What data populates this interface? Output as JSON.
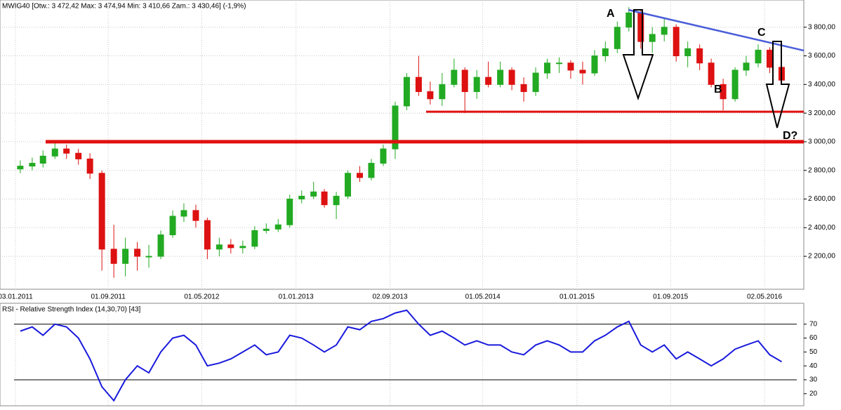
{
  "chart_data": [
    {
      "type": "candlestick",
      "title": "MWIG40 [Otw.: 3 472,42  Max: 3 474,94  Min: 3 410,66  Zam.: 3 430,46] (-1,9%)",
      "x": [
        "01.01.2011",
        "01.02.2011",
        "01.03.2011",
        "01.04.2011",
        "01.05.2011",
        "01.06.2011",
        "01.07.2011",
        "01.08.2011",
        "01.09.2011",
        "01.10.2011",
        "01.11.2011",
        "01.12.2011",
        "01.01.2012",
        "01.02.2012",
        "01.03.2012",
        "01.04.2012",
        "01.05.2012",
        "01.06.2012",
        "01.07.2012",
        "01.08.2012",
        "01.09.2012",
        "01.10.2012",
        "01.11.2012",
        "01.12.2012",
        "01.01.2013",
        "01.02.2013",
        "01.03.2013",
        "01.04.2013",
        "01.05.2013",
        "01.06.2013",
        "01.07.2013",
        "01.08.2013",
        "01.09.2013",
        "01.10.2013",
        "01.11.2013",
        "01.12.2013",
        "01.01.2014",
        "01.02.2014",
        "01.03.2014",
        "01.04.2014",
        "01.05.2014",
        "01.06.2014",
        "01.07.2014",
        "01.08.2014",
        "01.09.2014",
        "01.10.2014",
        "01.11.2014",
        "01.12.2014",
        "01.01.2015",
        "01.02.2015",
        "01.03.2015",
        "01.04.2015",
        "01.05.2015",
        "01.06.2015",
        "01.07.2015",
        "01.08.2015",
        "01.09.2015",
        "01.10.2015",
        "01.11.2015",
        "01.12.2015",
        "01.01.2016",
        "01.02.2016",
        "01.03.2016",
        "01.04.2016",
        "01.05.2016",
        "01.06.2016"
      ],
      "open": [
        2810,
        2830,
        2850,
        2900,
        2950,
        2920,
        2880,
        2780,
        2250,
        2150,
        2250,
        2200,
        2200,
        2350,
        2480,
        2520,
        2450,
        2250,
        2280,
        2260,
        2270,
        2380,
        2390,
        2420,
        2600,
        2620,
        2650,
        2560,
        2620,
        2780,
        2750,
        2850,
        2950,
        3250,
        3450,
        3350,
        3300,
        3400,
        3500,
        3350,
        3450,
        3400,
        3500,
        3400,
        3350,
        3480,
        3550,
        3550,
        3500,
        3480,
        3600,
        3650,
        3800,
        3900,
        3700,
        3750,
        3800,
        3600,
        3650,
        3550,
        3400,
        3300,
        3500,
        3550,
        3640,
        3520
      ],
      "high": [
        2870,
        2890,
        2940,
        2990,
        2980,
        2950,
        2920,
        2800,
        2420,
        2330,
        2300,
        2280,
        2380,
        2520,
        2570,
        2560,
        2470,
        2330,
        2320,
        2310,
        2410,
        2430,
        2460,
        2630,
        2660,
        2720,
        2670,
        2650,
        2800,
        2830,
        2880,
        2980,
        3280,
        3480,
        3600,
        3420,
        3480,
        3580,
        3520,
        3500,
        3560,
        3560,
        3520,
        3450,
        3520,
        3580,
        3590,
        3570,
        3560,
        3640,
        3700,
        3840,
        3940,
        3920,
        3800,
        3860,
        3820,
        3700,
        3680,
        3580,
        3440,
        3520,
        3600,
        3680,
        3660,
        3540
      ],
      "low": [
        2780,
        2800,
        2820,
        2880,
        2880,
        2840,
        2740,
        2100,
        2050,
        2060,
        2100,
        2120,
        2180,
        2330,
        2440,
        2400,
        2180,
        2200,
        2220,
        2220,
        2250,
        2360,
        2370,
        2400,
        2570,
        2600,
        2540,
        2460,
        2600,
        2720,
        2730,
        2830,
        2880,
        3220,
        3320,
        3260,
        3250,
        3380,
        3200,
        3300,
        3380,
        3380,
        3360,
        3280,
        3320,
        3440,
        3480,
        3440,
        3400,
        3460,
        3560,
        3620,
        3770,
        3650,
        3620,
        3700,
        3560,
        3520,
        3500,
        3380,
        3220,
        3280,
        3460,
        3520,
        3480,
        3410
      ],
      "close": [
        2830,
        2850,
        2900,
        2950,
        2920,
        2880,
        2780,
        2250,
        2150,
        2250,
        2200,
        2200,
        2350,
        2480,
        2520,
        2450,
        2250,
        2280,
        2260,
        2270,
        2380,
        2390,
        2420,
        2600,
        2620,
        2650,
        2560,
        2620,
        2780,
        2750,
        2850,
        2950,
        3250,
        3450,
        3350,
        3300,
        3400,
        3500,
        3350,
        3450,
        3400,
        3500,
        3400,
        3350,
        3480,
        3550,
        3550,
        3500,
        3480,
        3600,
        3650,
        3800,
        3900,
        3700,
        3750,
        3800,
        3600,
        3650,
        3550,
        3400,
        3300,
        3500,
        3550,
        3640,
        3520,
        3430
      ],
      "up_color": "#22aa22",
      "down_color": "#dd1111",
      "ylim": [
        1970,
        3990
      ],
      "yticks": [
        {
          "value": 2200,
          "label": "2 200,00"
        },
        {
          "value": 2400,
          "label": "2 400,00"
        },
        {
          "value": 2600,
          "label": "2 600,00"
        },
        {
          "value": 2800,
          "label": "2 800,00"
        },
        {
          "value": 3000,
          "label": "3 000,00"
        },
        {
          "value": 3200,
          "label": "3 200,00"
        },
        {
          "value": 3400,
          "label": "3 400,00"
        },
        {
          "value": 3600,
          "label": "3 600,00"
        },
        {
          "value": 3800,
          "label": "3 800,00"
        }
      ],
      "xticks": [
        "03.01.2011",
        "01.09.2011",
        "01.05.2012",
        "01.01.2013",
        "02.09.2013",
        "01.05.2014",
        "01.01.2015",
        "01.09.2015",
        "02.05.2016"
      ],
      "support_lines": [
        3000,
        3210
      ],
      "annotations": [
        "A",
        "B",
        "C",
        "D?"
      ],
      "grid": true
    },
    {
      "type": "line",
      "title": "RSI - Relative Strength Index (14,30,70) [43]",
      "values": [
        65,
        68,
        62,
        70,
        68,
        60,
        45,
        25,
        15,
        30,
        40,
        35,
        50,
        60,
        62,
        55,
        40,
        42,
        45,
        50,
        55,
        48,
        50,
        62,
        60,
        55,
        50,
        55,
        68,
        66,
        72,
        74,
        78,
        80,
        70,
        62,
        65,
        60,
        55,
        58,
        55,
        55,
        50,
        48,
        55,
        58,
        55,
        50,
        50,
        58,
        62,
        68,
        72,
        55,
        50,
        55,
        45,
        50,
        45,
        40,
        45,
        52,
        55,
        58,
        48,
        43
      ],
      "color": "#1a1adc",
      "ylim": [
        11.3,
        85
      ],
      "yticks": [
        20,
        30,
        40,
        50,
        60,
        70
      ],
      "levels": [
        30,
        70
      ]
    }
  ]
}
